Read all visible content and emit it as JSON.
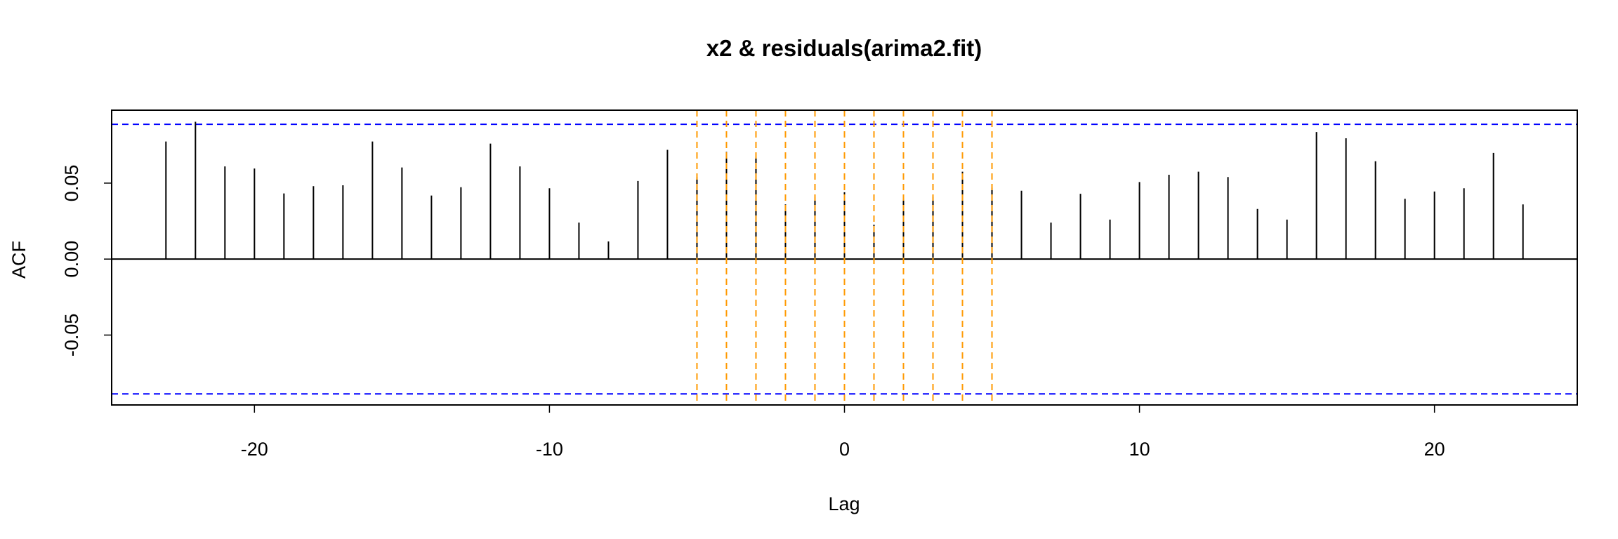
{
  "chart_data": {
    "type": "stem",
    "title": "x2 & residuals(arima2.fit)",
    "xlabel": "Lag",
    "ylabel": "ACF",
    "x": [
      -23,
      -22,
      -21,
      -20,
      -19,
      -18,
      -17,
      -16,
      -15,
      -14,
      -13,
      -12,
      -11,
      -10,
      -9,
      -8,
      -7,
      -6,
      -5,
      -4,
      -3,
      -2,
      -1,
      0,
      1,
      2,
      3,
      4,
      5,
      6,
      7,
      8,
      9,
      10,
      11,
      12,
      13,
      14,
      15,
      16,
      17,
      18,
      19,
      20,
      21,
      22,
      23
    ],
    "values": [
      0.0774,
      0.0904,
      0.061,
      0.0596,
      0.0432,
      0.048,
      0.0486,
      0.0774,
      0.0603,
      0.0418,
      0.0473,
      0.076,
      0.061,
      0.0466,
      0.024,
      0.0116,
      0.0514,
      0.0719,
      0.054,
      0.0705,
      0.067,
      0.036,
      0.041,
      0.044,
      0.0226,
      0.0397,
      0.041,
      0.0575,
      0.047,
      0.045,
      0.024,
      0.043,
      0.026,
      0.0507,
      0.0555,
      0.0575,
      0.054,
      0.033,
      0.026,
      0.0836,
      0.0795,
      0.0644,
      0.0397,
      0.0445,
      0.0466,
      0.0699,
      0.036
    ],
    "color": "#000000",
    "xlim": [
      -24.84,
      24.84
    ],
    "ylim": [
      -0.096,
      0.098
    ],
    "xticks": [
      -20,
      -10,
      0,
      10,
      20
    ],
    "yticks": [
      {
        "value": -0.05,
        "label": "-0.05"
      },
      {
        "value": 0,
        "label": "0.00"
      },
      {
        "value": 0.05,
        "label": "0.05"
      }
    ],
    "ci_lines": [
      0.0887,
      -0.0887
    ],
    "ci_color": "#0000ff",
    "vlines": [
      -5,
      -4,
      -3,
      -2,
      -1,
      0,
      1,
      2,
      3,
      4,
      5
    ],
    "vline_color": "#ff9900"
  }
}
